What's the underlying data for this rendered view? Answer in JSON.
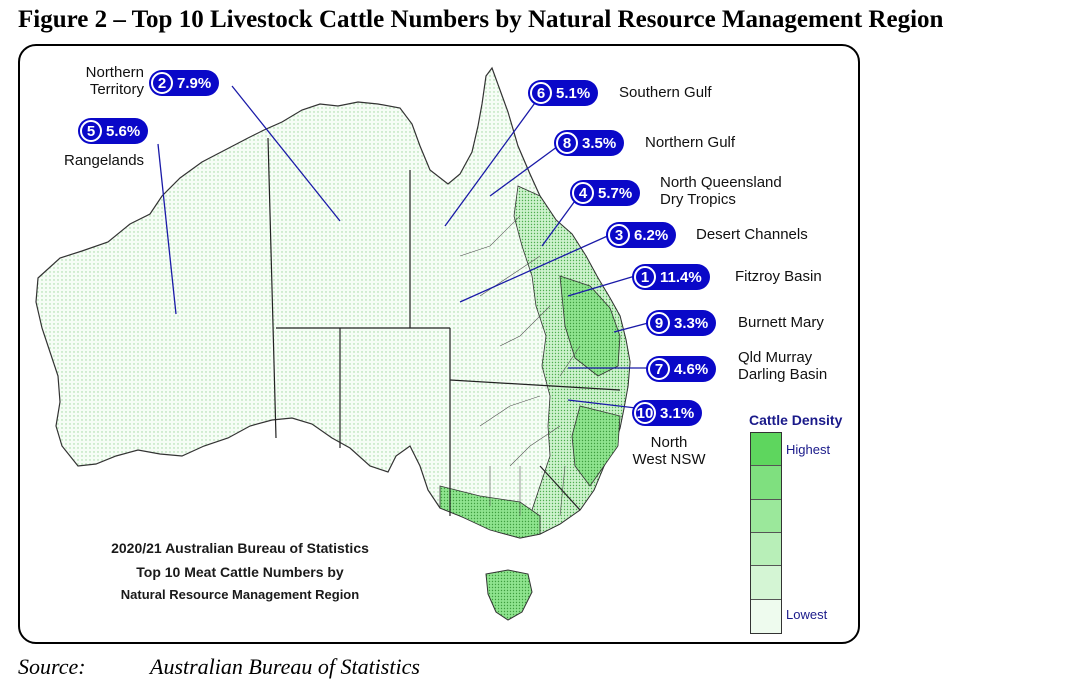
{
  "figure_title": "Figure 2 – Top 10 Livestock Cattle Numbers by Natural Resource Management Region",
  "caption": {
    "line1": "2020/21 Australian Bureau of Statistics",
    "line2": "Top 10 Meat Cattle Numbers by",
    "line3": "Natural Resource Management Region"
  },
  "legend": {
    "title": "Cattle Density",
    "highest": "Highest",
    "lowest": "Lowest",
    "colors": [
      "#5ed65e",
      "#7fe07f",
      "#9be89b",
      "#b8efb8",
      "#d4f5d4",
      "#eefbee"
    ]
  },
  "regions": [
    {
      "rank": "1",
      "percent": "11.4%",
      "name": "Fitzroy Basin"
    },
    {
      "rank": "2",
      "percent": "7.9%",
      "name_line1": "Northern",
      "name_line2": "Territory"
    },
    {
      "rank": "3",
      "percent": "6.2%",
      "name": "Desert Channels"
    },
    {
      "rank": "4",
      "percent": "5.7%",
      "name_line1": "North Queensland",
      "name_line2": "Dry Tropics"
    },
    {
      "rank": "5",
      "percent": "5.6%",
      "name": "Rangelands"
    },
    {
      "rank": "6",
      "percent": "5.1%",
      "name": "Southern Gulf"
    },
    {
      "rank": "7",
      "percent": "4.6%",
      "name_line1": "Qld Murray",
      "name_line2": "Darling Basin"
    },
    {
      "rank": "8",
      "percent": "3.5%",
      "name": "Northern Gulf"
    },
    {
      "rank": "9",
      "percent": "3.3%",
      "name": "Burnett Mary"
    },
    {
      "rank": "10",
      "percent": "3.1%",
      "name_line1": "North",
      "name_line2": "West NSW"
    }
  ],
  "source": {
    "label": "Source:",
    "text": "Australian Bureau of Statistics"
  },
  "colors": {
    "pill": "#0a08c8",
    "map_fill": "#f4fcf4",
    "dense_fill": "#8fe48f",
    "leader_line": "#1a1aa8"
  }
}
